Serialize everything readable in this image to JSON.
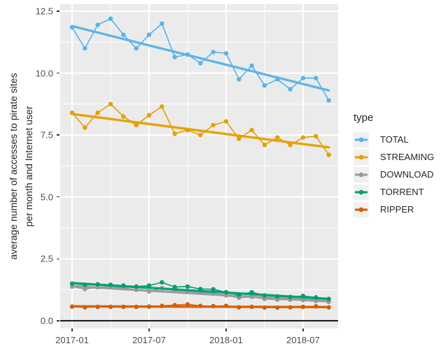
{
  "figure": {
    "background": "#FFFFFF",
    "panel_background": "#EBEBEB",
    "grid_color": "#FFFFFF",
    "axis_text_color": "#4D4D4D",
    "axis_title_color": "#262626",
    "zero_line_color": "#000000",
    "legend_key_background": "#F0F0F0"
  },
  "chart_data": {
    "type": "line",
    "title": "",
    "xlabel": "",
    "ylabel": "average number of accesses to pirate sites per month and Internet user",
    "ylabel_lines": [
      "average number of accesses to pirate sites",
      "per month and Internet user"
    ],
    "grid": true,
    "ylim": [
      0,
      12.5
    ],
    "y_ticks": [
      0,
      2.5,
      5,
      7.5,
      10,
      12.5
    ],
    "y_tick_labels": [
      "0.0",
      "2.5",
      "5.0",
      "7.5",
      "10.0",
      "12.5"
    ],
    "y_minor_ticks": [
      1.25,
      3.75,
      6.25,
      8.75,
      11.25
    ],
    "x_tick_labels": [
      "2017-01",
      "2017-07",
      "2018-01",
      "2018-07"
    ],
    "x_tick_month_index": [
      0,
      6,
      12,
      18
    ],
    "x_minor_month_index": [
      3,
      9,
      15
    ],
    "months": [
      "2017-01",
      "2017-02",
      "2017-03",
      "2017-04",
      "2017-05",
      "2017-06",
      "2017-07",
      "2017-08",
      "2017-09",
      "2017-10",
      "2017-11",
      "2017-12",
      "2018-01",
      "2018-02",
      "2018-03",
      "2018-04",
      "2018-05",
      "2018-06",
      "2018-07",
      "2018-08",
      "2018-09"
    ],
    "legend_position": "right",
    "legend_title": "type",
    "series": [
      {
        "name": "TOTAL",
        "color": "#56B4E9",
        "values": [
          11.85,
          11.0,
          11.95,
          12.2,
          11.55,
          11.0,
          11.55,
          12.0,
          10.65,
          10.75,
          10.4,
          10.85,
          10.8,
          9.75,
          10.3,
          9.5,
          9.75,
          9.35,
          9.8,
          9.8,
          8.9
        ],
        "trend": [
          11.9,
          9.3
        ]
      },
      {
        "name": "STREAMING",
        "color": "#E69F00",
        "values": [
          8.4,
          7.8,
          8.4,
          8.75,
          8.25,
          7.9,
          8.3,
          8.65,
          7.55,
          7.7,
          7.5,
          7.9,
          8.05,
          7.35,
          7.7,
          7.1,
          7.4,
          7.1,
          7.4,
          7.45,
          6.7
        ],
        "trend": [
          8.35,
          7.0
        ]
      },
      {
        "name": "DOWNLOAD",
        "color": "#999999",
        "values": [
          1.38,
          1.28,
          1.35,
          1.38,
          1.33,
          1.25,
          1.18,
          1.32,
          1.22,
          1.2,
          1.14,
          1.1,
          1.02,
          0.93,
          0.97,
          0.88,
          0.85,
          0.85,
          0.83,
          0.8,
          0.76
        ],
        "trend": [
          1.4,
          0.78
        ]
      },
      {
        "name": "TORRENT",
        "color": "#009E73",
        "values": [
          1.5,
          1.45,
          1.47,
          1.45,
          1.42,
          1.38,
          1.42,
          1.55,
          1.36,
          1.38,
          1.28,
          1.27,
          1.15,
          1.05,
          1.15,
          1.02,
          0.98,
          0.96,
          1.0,
          0.94,
          0.88
        ],
        "trend": [
          1.52,
          0.88
        ]
      },
      {
        "name": "RIPPER",
        "color": "#D55E00",
        "values": [
          0.57,
          0.54,
          0.56,
          0.56,
          0.56,
          0.56,
          0.57,
          0.6,
          0.63,
          0.66,
          0.6,
          0.59,
          0.6,
          0.54,
          0.56,
          0.53,
          0.53,
          0.54,
          0.56,
          0.58,
          0.54
        ],
        "trend": [
          0.58,
          0.55
        ]
      }
    ]
  }
}
